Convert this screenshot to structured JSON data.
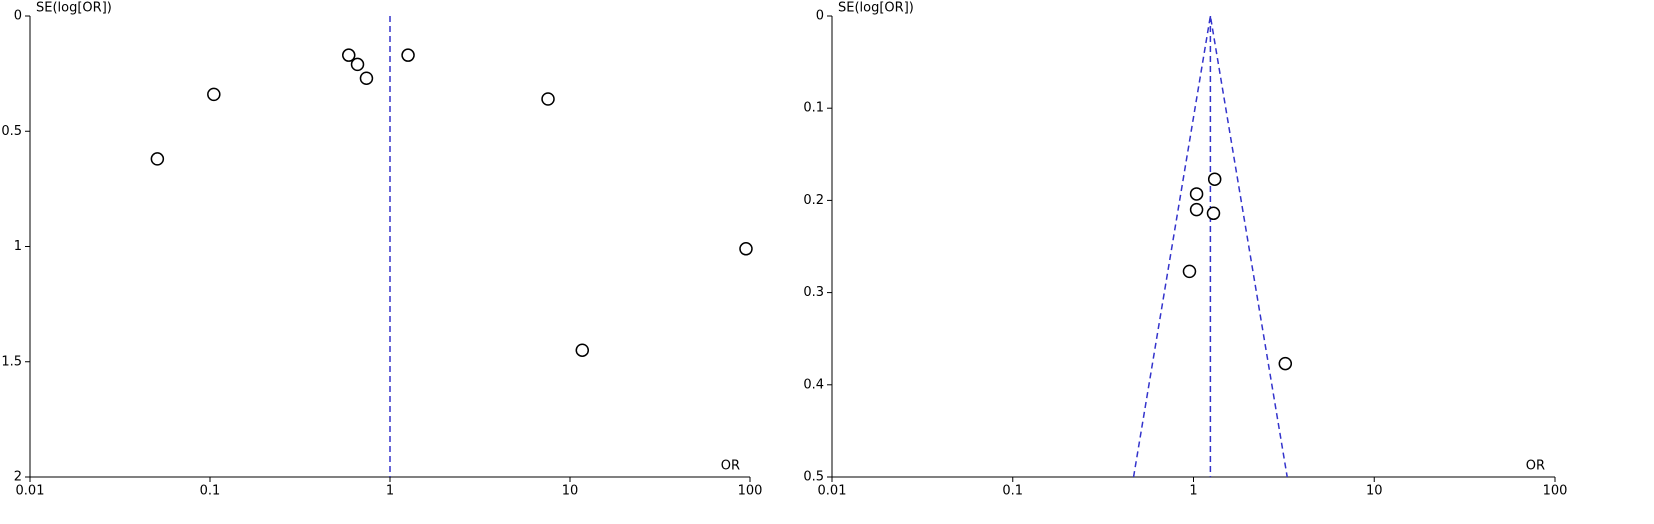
{
  "chart_data": [
    {
      "type": "scatter",
      "x_label": "OR",
      "y_label": "SE(log[OR])",
      "log_x": true,
      "y_inverted": true,
      "xlim": [
        0.01,
        100
      ],
      "xticks": [
        0.01,
        0.1,
        1,
        10,
        100
      ],
      "ylim": [
        0,
        2
      ],
      "yticks": [
        0,
        0.5,
        1,
        1.5,
        2
      ],
      "x": [
        0.051,
        0.105,
        0.59,
        0.66,
        0.74,
        1.26,
        7.55,
        95,
        11.7
      ],
      "y": [
        0.62,
        0.34,
        0.17,
        0.21,
        0.27,
        0.17,
        0.36,
        1.01,
        1.45
      ],
      "marker_color": "#000000",
      "line_color": "#3333cc",
      "reference_line": 1
    },
    {
      "type": "scatter",
      "x_label": "OR",
      "y_label": "SE(log[OR])",
      "log_x": true,
      "y_inverted": true,
      "xlim": [
        0.01,
        100
      ],
      "xticks": [
        0.01,
        0.1,
        1,
        10,
        100
      ],
      "ylim": [
        0,
        0.5
      ],
      "yticks": [
        0,
        0.1,
        0.2,
        0.3,
        0.4,
        0.5
      ],
      "x": [
        1.31,
        1.04,
        1.04,
        1.29,
        0.95,
        3.22
      ],
      "y": [
        0.177,
        0.193,
        0.21,
        0.214,
        0.277,
        0.377
      ],
      "marker_color": "#000000",
      "line_color": "#3333cc",
      "reference_line": 1.24,
      "funnel": {
        "x": [
          0.466,
          1.24,
          3.3
        ],
        "y": [
          0.5,
          0,
          0.5
        ]
      }
    }
  ]
}
